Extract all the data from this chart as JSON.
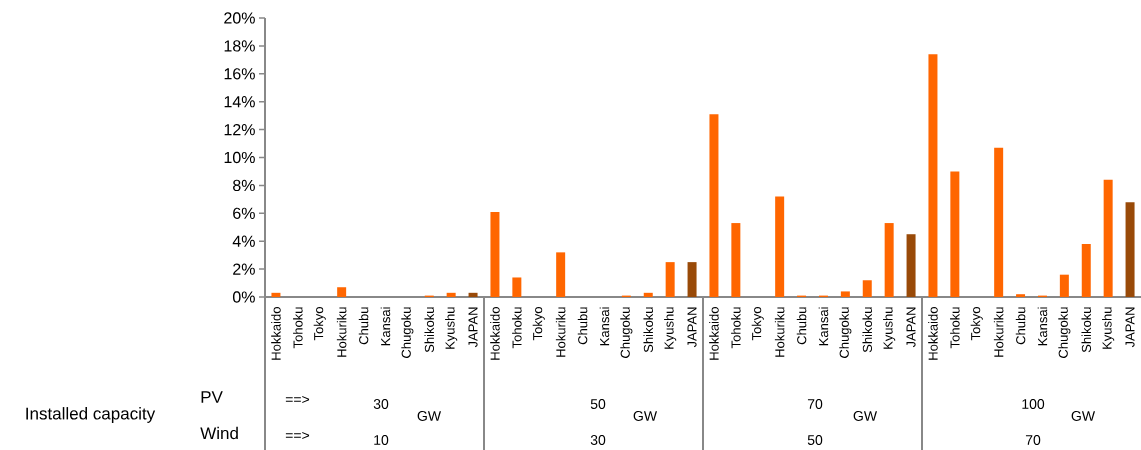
{
  "chart_data": {
    "type": "bar",
    "categories": [
      "Hokkaido",
      "Tohoku",
      "Tokyo",
      "Hokuriku",
      "Chubu",
      "Kansai",
      "Chugoku",
      "Shikoku",
      "Kyushu",
      "JAPAN",
      "Hokkaido",
      "Tohoku",
      "Tokyo",
      "Hokuriku",
      "Chubu",
      "Kansai",
      "Chugoku",
      "Shikoku",
      "Kyushu",
      "JAPAN",
      "Hokkaido",
      "Tohoku",
      "Tokyo",
      "Hokuriku",
      "Chubu",
      "Kansai",
      "Chugoku",
      "Shikoku",
      "Kyushu",
      "JAPAN",
      "Hokkaido",
      "Tohoku",
      "Tokyo",
      "Hokuriku",
      "Chubu",
      "Kansai",
      "Chugoku",
      "Shikoku",
      "Kyushu",
      "JAPAN"
    ],
    "values": [
      0.3,
      0,
      0,
      0.7,
      0,
      0,
      0,
      0.1,
      0.3,
      0.3,
      6.1,
      1.4,
      0,
      3.2,
      0,
      0,
      0.1,
      0.3,
      2.5,
      2.5,
      13.1,
      5.3,
      0,
      7.2,
      0.1,
      0.1,
      0.4,
      1.2,
      5.3,
      4.5,
      17.4,
      9.0,
      0,
      10.7,
      0.2,
      0.1,
      1.6,
      3.8,
      8.4,
      6.8
    ],
    "colors": [
      "#ff6600",
      "#ff6600",
      "#ff6600",
      "#ff6600",
      "#ff6600",
      "#ff6600",
      "#ff6600",
      "#ff6600",
      "#ff6600",
      "#994a08",
      "#ff6600",
      "#ff6600",
      "#ff6600",
      "#ff6600",
      "#ff6600",
      "#ff6600",
      "#ff6600",
      "#ff6600",
      "#ff6600",
      "#994a08",
      "#ff6600",
      "#ff6600",
      "#ff6600",
      "#ff6600",
      "#ff6600",
      "#ff6600",
      "#ff6600",
      "#ff6600",
      "#ff6600",
      "#994a08",
      "#ff6600",
      "#ff6600",
      "#ff6600",
      "#ff6600",
      "#ff6600",
      "#ff6600",
      "#ff6600",
      "#ff6600",
      "#ff6600",
      "#994a08"
    ],
    "ylim": [
      0,
      20
    ],
    "yticks": [
      {
        "value": 0,
        "label": "0%"
      },
      {
        "value": 2,
        "label": "2%"
      },
      {
        "value": 4,
        "label": "4%"
      },
      {
        "value": 6,
        "label": "6%"
      },
      {
        "value": 8,
        "label": "8%"
      },
      {
        "value": 10,
        "label": "10%"
      },
      {
        "value": 12,
        "label": "12%"
      },
      {
        "value": 14,
        "label": "14%"
      },
      {
        "value": 16,
        "label": "16%"
      },
      {
        "value": 18,
        "label": "18%"
      },
      {
        "value": 20,
        "label": "20%"
      }
    ],
    "annotations": [
      "Installed capacity",
      "PV",
      "Wind",
      "==>",
      "==>",
      "30",
      "GW",
      "10",
      "50",
      "GW",
      "30",
      "70",
      "GW",
      "50",
      "100",
      "GW",
      "70"
    ]
  }
}
